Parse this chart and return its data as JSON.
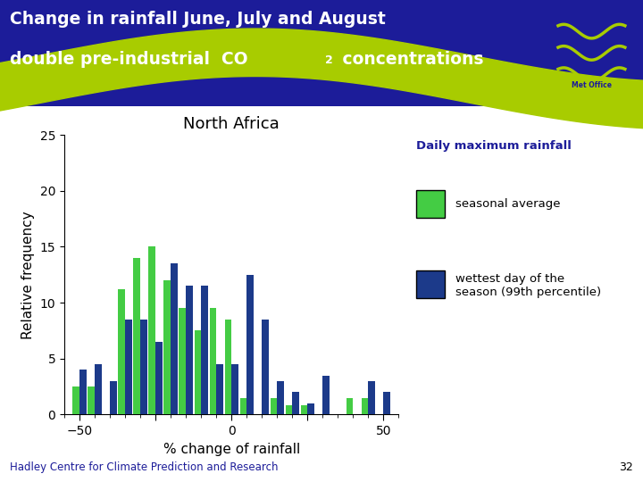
{
  "title_line1": "Change in rainfall June, July and August",
  "title_line2_pre": "double pre-industrial  CO",
  "title_co2_sub": "2",
  "title_line2_post": " concentrations",
  "chart_title": "North Africa",
  "xlabel": "% change of rainfall",
  "ylabel": "Relative frequency",
  "legend_title": "Daily maximum rainfall",
  "legend_green": "seasonal average",
  "legend_blue": "wettest day of the\nseason (99th percentile)",
  "footer": "Hadley Centre for Climate Prediction and Research",
  "page_num": "32",
  "header_bg": "#1c1c99",
  "header_green_stripe": "#a8cc00",
  "bar_color_green": "#44cc44",
  "bar_color_blue": "#1c3a8a",
  "bg_color": "#ffffff",
  "ylim": [
    0,
    25
  ],
  "yticks": [
    0,
    5,
    10,
    15,
    20,
    25
  ],
  "bin_centers": [
    -50,
    -45,
    -40,
    -35,
    -30,
    -25,
    -20,
    -15,
    -10,
    -5,
    0,
    5,
    10,
    15,
    20,
    25,
    30,
    35,
    40,
    45,
    50
  ],
  "green_values": [
    2.5,
    2.5,
    0.0,
    11.2,
    14.0,
    15.0,
    12.0,
    9.5,
    7.5,
    9.5,
    8.5,
    1.5,
    0.0,
    1.5,
    0.8,
    0.8,
    0.0,
    0.0,
    1.5,
    1.5,
    0.0
  ],
  "blue_values": [
    4.0,
    4.5,
    3.0,
    8.5,
    8.5,
    6.5,
    13.5,
    11.5,
    11.5,
    4.5,
    4.5,
    12.5,
    8.5,
    3.0,
    2.0,
    1.0,
    3.5,
    0.0,
    0.0,
    3.0,
    2.0
  ],
  "bar_width": 4.5,
  "xlim": [
    -55,
    55
  ]
}
